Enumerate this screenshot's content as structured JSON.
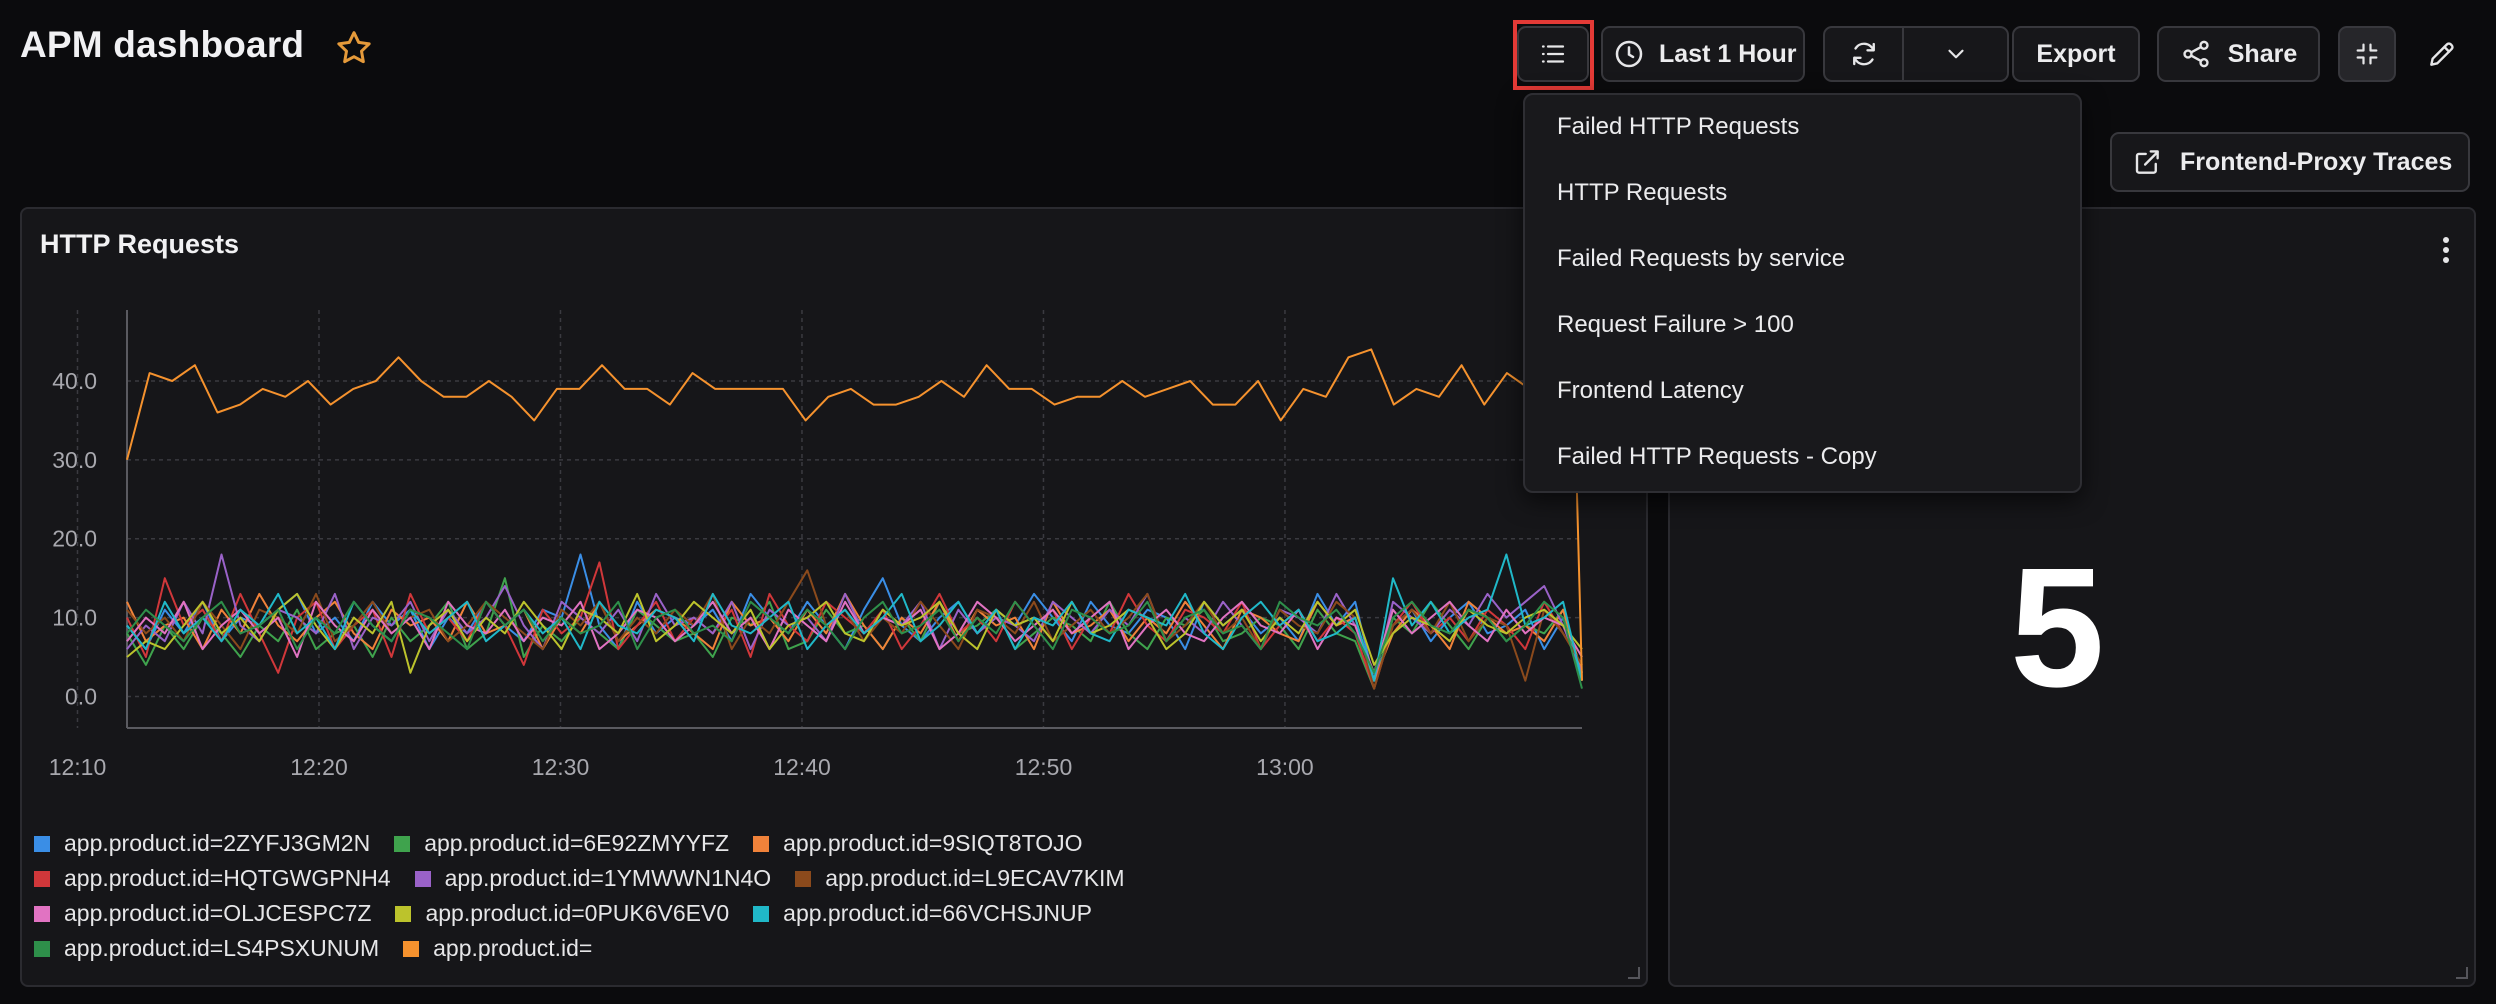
{
  "header": {
    "title": "APM dashboard",
    "star_icon": "star-icon",
    "time_range_label": "Last 1 Hour",
    "export_label": "Export",
    "share_label": "Share"
  },
  "colors": {
    "accent_star": "#e59a3a",
    "highlight": "#e33a36"
  },
  "panel_menu": {
    "items": [
      "Failed HTTP Requests",
      "HTTP Requests",
      "Failed Requests by service",
      "Request Failure > 100",
      "Frontend Latency",
      "Failed HTTP Requests - Copy"
    ]
  },
  "link_button": {
    "label": "Frontend-Proxy Traces"
  },
  "http_panel": {
    "title": "HTTP Requests"
  },
  "stat_panel": {
    "value": "5"
  },
  "chart_data": {
    "type": "line",
    "title": "HTTP Requests",
    "x_ticks": [
      "12:10",
      "12:20",
      "12:30",
      "12:40",
      "12:50",
      "13:00"
    ],
    "y_ticks": [
      "0.0",
      "10.0",
      "20.0",
      "30.0",
      "40.0"
    ],
    "ylim": [
      -4,
      49
    ],
    "xlim_minutes": [
      12.05,
      72.3
    ],
    "x_start": "12:02",
    "grid": true,
    "legend_position": "bottom",
    "series": [
      {
        "name": "app.product.id=2ZYFJ3GM2N",
        "color": "#3a8ee6",
        "values": [
          9,
          6,
          11,
          8,
          12,
          7,
          10,
          9,
          11,
          13,
          8,
          10,
          7,
          12,
          9,
          11,
          6,
          10,
          8,
          12,
          9,
          7,
          11,
          10,
          18,
          9,
          6,
          12,
          8,
          10,
          9,
          11,
          7,
          13,
          10,
          8,
          12,
          9,
          6,
          11,
          15,
          9,
          7,
          10,
          12,
          8,
          11,
          9,
          13,
          10,
          7,
          12,
          9,
          8,
          11,
          10,
          6,
          12,
          9,
          11,
          8,
          10,
          7,
          13,
          9,
          12,
          2,
          9,
          11,
          7,
          10,
          12,
          8,
          9,
          11,
          6,
          10,
          2
        ]
      },
      {
        "name": "app.product.id=6E92ZMYYFZ",
        "color": "#3fa34d",
        "values": [
          8,
          4,
          9,
          6,
          10,
          8,
          5,
          9,
          7,
          11,
          6,
          8,
          9,
          5,
          10,
          7,
          9,
          12,
          6,
          8,
          15,
          5,
          9,
          7,
          10,
          8,
          6,
          11,
          9,
          7,
          8,
          5,
          10,
          9,
          12,
          6,
          7,
          11,
          8,
          9,
          6,
          10,
          7,
          12,
          8,
          9,
          11,
          6,
          8,
          10,
          9,
          7,
          12,
          8,
          6,
          10,
          9,
          11,
          7,
          8,
          10,
          9,
          6,
          11,
          8,
          7,
          1,
          10,
          8,
          12,
          9,
          6,
          10,
          7,
          9,
          8,
          11,
          2
        ]
      },
      {
        "name": "app.product.id=9SIQT8TOJO",
        "color": "#f0823a",
        "values": [
          12,
          7,
          9,
          10,
          6,
          11,
          8,
          13,
          9,
          7,
          10,
          12,
          8,
          6,
          11,
          9,
          10,
          7,
          12,
          8,
          9,
          11,
          6,
          10,
          8,
          12,
          7,
          9,
          11,
          10,
          8,
          6,
          12,
          9,
          10,
          7,
          11,
          8,
          13,
          9,
          6,
          10,
          8,
          12,
          7,
          11,
          9,
          10,
          6,
          12,
          8,
          9,
          11,
          7,
          10,
          8,
          12,
          9,
          6,
          11,
          10,
          8,
          7,
          12,
          9,
          10,
          2,
          8,
          11,
          9,
          6,
          12,
          10,
          8,
          9,
          7,
          11,
          3
        ]
      },
      {
        "name": "app.product.id=HQTGWGPNH4",
        "color": "#d0373a",
        "values": [
          10,
          5,
          15,
          9,
          11,
          7,
          13,
          8,
          3,
          10,
          12,
          6,
          9,
          11,
          5,
          13,
          8,
          10,
          7,
          12,
          9,
          4,
          11,
          8,
          10,
          17,
          6,
          9,
          12,
          7,
          10,
          8,
          11,
          5,
          13,
          9,
          7,
          12,
          10,
          8,
          11,
          6,
          9,
          13,
          8,
          10,
          7,
          12,
          9,
          11,
          6,
          10,
          8,
          13,
          9,
          7,
          11,
          10,
          8,
          12,
          6,
          9,
          11,
          7,
          10,
          8,
          1,
          9,
          12,
          8,
          10,
          7,
          11,
          9,
          6,
          12,
          8,
          4
        ]
      },
      {
        "name": "app.product.id=1YMWWN1N4O",
        "color": "#9a62c8",
        "values": [
          6,
          9,
          7,
          12,
          8,
          18,
          9,
          7,
          11,
          10,
          8,
          13,
          6,
          10,
          9,
          12,
          7,
          11,
          8,
          10,
          14,
          9,
          6,
          12,
          10,
          8,
          11,
          7,
          13,
          9,
          10,
          8,
          12,
          6,
          11,
          9,
          10,
          7,
          13,
          8,
          10,
          9,
          12,
          6,
          11,
          8,
          10,
          9,
          7,
          12,
          10,
          8,
          11,
          9,
          13,
          7,
          10,
          8,
          12,
          9,
          6,
          11,
          10,
          8,
          13,
          9,
          2,
          12,
          10,
          8,
          11,
          9,
          13,
          10,
          12,
          14,
          9,
          3
        ]
      },
      {
        "name": "app.product.id=L9ECAV7KIM",
        "color": "#8b4a1c",
        "values": [
          11,
          8,
          10,
          7,
          12,
          9,
          6,
          11,
          10,
          8,
          13,
          7,
          9,
          12,
          8,
          10,
          11,
          7,
          9,
          12,
          10,
          8,
          6,
          11,
          9,
          12,
          7,
          10,
          8,
          11,
          9,
          13,
          6,
          10,
          8,
          12,
          16,
          9,
          11,
          7,
          10,
          8,
          12,
          9,
          6,
          11,
          10,
          8,
          12,
          7,
          9,
          11,
          8,
          10,
          13,
          7,
          9,
          12,
          8,
          10,
          6,
          11,
          9,
          8,
          12,
          10,
          1,
          9,
          11,
          8,
          12,
          7,
          10,
          9,
          2,
          11,
          8,
          4
        ]
      },
      {
        "name": "app.product.id=OLJCESPC7Z",
        "color": "#e173c2",
        "values": [
          7,
          10,
          8,
          12,
          6,
          9,
          11,
          8,
          10,
          5,
          12,
          9,
          7,
          11,
          8,
          10,
          6,
          12,
          9,
          8,
          11,
          7,
          10,
          9,
          12,
          6,
          8,
          11,
          10,
          7,
          9,
          12,
          8,
          10,
          6,
          11,
          9,
          7,
          12,
          8,
          10,
          9,
          11,
          6,
          8,
          12,
          10,
          7,
          9,
          11,
          8,
          10,
          12,
          6,
          9,
          11,
          8,
          7,
          10,
          12,
          9,
          8,
          11,
          6,
          10,
          9,
          3,
          11,
          8,
          10,
          12,
          9,
          7,
          11,
          8,
          10,
          9,
          5
        ]
      },
      {
        "name": "app.product.id=0PUK6V6EV0",
        "color": "#bcc32c",
        "values": [
          5,
          7,
          6,
          9,
          12,
          8,
          10,
          7,
          11,
          13,
          9,
          6,
          10,
          8,
          12,
          3,
          9,
          11,
          7,
          10,
          8,
          12,
          9,
          6,
          11,
          10,
          8,
          13,
          7,
          9,
          12,
          10,
          8,
          11,
          6,
          9,
          10,
          12,
          8,
          7,
          11,
          9,
          10,
          12,
          8,
          6,
          11,
          9,
          10,
          7,
          12,
          8,
          9,
          11,
          10,
          6,
          8,
          12,
          9,
          11,
          7,
          10,
          8,
          12,
          9,
          11,
          4,
          8,
          10,
          9,
          7,
          11,
          9,
          8,
          10,
          11,
          9,
          6
        ]
      },
      {
        "name": "app.product.id=66VCHSJNUP",
        "color": "#20b8c8",
        "values": [
          9,
          6,
          12,
          8,
          10,
          7,
          11,
          9,
          13,
          8,
          10,
          6,
          12,
          9,
          7,
          11,
          8,
          10,
          12,
          7,
          9,
          11,
          8,
          10,
          6,
          12,
          9,
          8,
          11,
          10,
          7,
          13,
          9,
          8,
          10,
          12,
          6,
          9,
          11,
          8,
          10,
          13,
          7,
          9,
          12,
          8,
          11,
          6,
          10,
          9,
          12,
          8,
          7,
          11,
          10,
          9,
          13,
          8,
          6,
          10,
          12,
          9,
          11,
          7,
          8,
          10,
          2,
          15,
          9,
          12,
          8,
          10,
          11,
          18,
          9,
          10,
          12,
          2
        ]
      },
      {
        "name": "app.product.id=LS4PSXUNUM",
        "color": "#2e8f4a",
        "values": [
          8,
          11,
          9,
          7,
          10,
          12,
          8,
          9,
          11,
          6,
          10,
          8,
          12,
          9,
          7,
          11,
          10,
          8,
          6,
          12,
          9,
          11,
          7,
          10,
          8,
          9,
          12,
          6,
          10,
          11,
          8,
          9,
          7,
          12,
          10,
          8,
          11,
          9,
          6,
          10,
          12,
          8,
          9,
          11,
          7,
          10,
          8,
          12,
          9,
          6,
          11,
          10,
          8,
          9,
          12,
          7,
          10,
          11,
          8,
          9,
          6,
          12,
          10,
          9,
          11,
          8,
          3,
          10,
          12,
          9,
          8,
          11,
          10,
          7,
          9,
          12,
          10,
          1
        ]
      },
      {
        "name": "app.product.id=",
        "color": "#f5922e",
        "values": [
          30,
          41,
          40,
          42,
          36,
          37,
          39,
          38,
          40,
          37,
          39,
          40,
          43,
          40,
          38,
          38,
          40,
          38,
          35,
          39,
          39,
          42,
          39,
          39,
          37,
          41,
          39,
          39,
          39,
          39,
          35,
          38,
          39,
          37,
          37,
          38,
          40,
          38,
          42,
          39,
          39,
          37,
          38,
          38,
          40,
          38,
          39,
          40,
          37,
          37,
          40,
          35,
          39,
          38,
          43,
          44,
          37,
          39,
          38,
          42,
          37,
          41,
          39,
          37,
          36,
          2
        ]
      }
    ]
  },
  "legend": {
    "rows": [
      [
        0,
        1,
        2
      ],
      [
        3,
        4,
        5
      ],
      [
        6,
        7,
        8
      ],
      [
        9,
        10
      ]
    ]
  }
}
